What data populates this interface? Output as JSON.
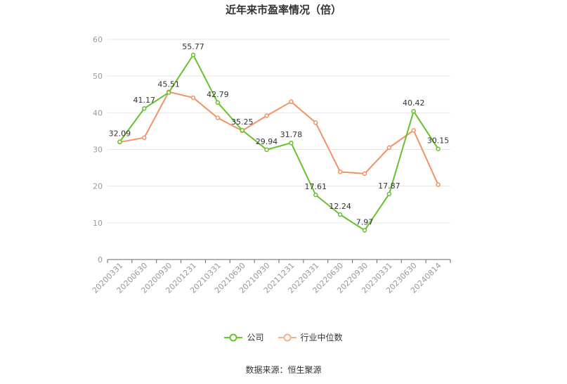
{
  "chart_data": {
    "type": "line",
    "title": "近年来市盈率情况（倍）",
    "categories": [
      "20200331",
      "20200630",
      "20200930",
      "20201231",
      "20210331",
      "20210630",
      "20210930",
      "20211231",
      "20220331",
      "20220630",
      "20220930",
      "20230331",
      "20230630",
      "20240814"
    ],
    "series": [
      {
        "name": "公司",
        "color": "#66c22c",
        "values": [
          32.09,
          41.17,
          45.51,
          55.77,
          42.79,
          35.25,
          29.94,
          31.78,
          17.61,
          12.24,
          7.97,
          17.87,
          40.42,
          30.15
        ],
        "labels": [
          "32.09",
          "41.17",
          "45.51",
          "55.77",
          "42.79",
          "35.25",
          "29.94",
          "31.78",
          "17.61",
          "12.24",
          "7.97",
          "17.87",
          "40.42",
          "30.15"
        ]
      },
      {
        "name": "行业中位数",
        "color": "#f39266",
        "values": [
          32.0,
          33.2,
          45.7,
          44.1,
          38.6,
          35.1,
          39.2,
          43.0,
          37.3,
          23.9,
          23.4,
          30.5,
          35.2,
          20.4
        ]
      }
    ],
    "y_ticks": [
      "0",
      "10",
      "20",
      "30",
      "40",
      "50",
      "60"
    ],
    "ylim": [
      0,
      60
    ],
    "grid": true,
    "legend_position": "bottom"
  },
  "source": "数据来源：恒生聚源"
}
